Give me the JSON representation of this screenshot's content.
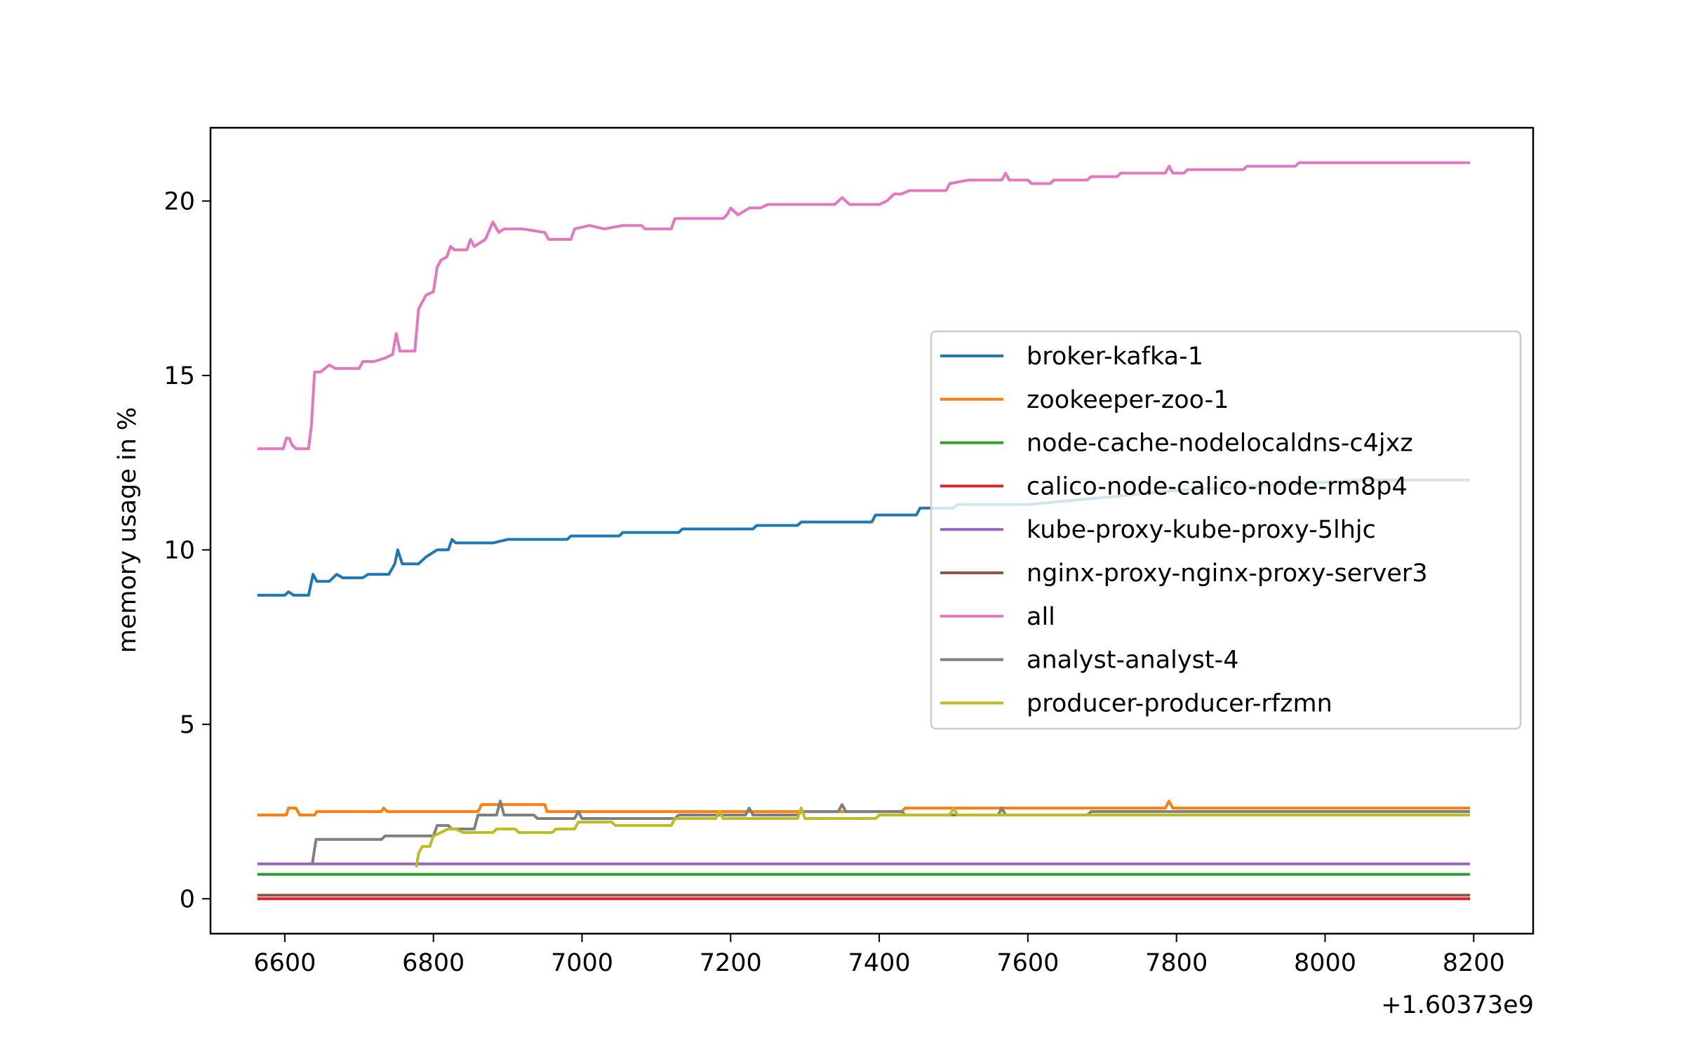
{
  "chart_data": {
    "type": "line",
    "title": "",
    "xlabel": "",
    "ylabel": "memory usage in %",
    "x_offset_label": "+1.60373e9",
    "xlim": [
      6500,
      8280
    ],
    "ylim": [
      -1.0,
      22.1
    ],
    "xticks": [
      6600,
      6800,
      7000,
      7200,
      7400,
      7600,
      7800,
      8000,
      8200
    ],
    "yticks": [
      0,
      5,
      10,
      15,
      20
    ],
    "grid": false,
    "legend_position": "center-right",
    "series": [
      {
        "name": "broker-kafka-1",
        "color": "#1f77b4",
        "points": [
          [
            6563,
            8.7
          ],
          [
            6600,
            8.7
          ],
          [
            6605,
            8.8
          ],
          [
            6612,
            8.7
          ],
          [
            6632,
            8.7
          ],
          [
            6638,
            9.3
          ],
          [
            6643,
            9.1
          ],
          [
            6660,
            9.1
          ],
          [
            6670,
            9.3
          ],
          [
            6678,
            9.2
          ],
          [
            6705,
            9.2
          ],
          [
            6712,
            9.3
          ],
          [
            6740,
            9.3
          ],
          [
            6748,
            9.6
          ],
          [
            6752,
            10.0
          ],
          [
            6758,
            9.6
          ],
          [
            6780,
            9.6
          ],
          [
            6790,
            9.8
          ],
          [
            6805,
            10.0
          ],
          [
            6820,
            10.0
          ],
          [
            6825,
            10.3
          ],
          [
            6830,
            10.2
          ],
          [
            6880,
            10.2
          ],
          [
            6900,
            10.3
          ],
          [
            6980,
            10.3
          ],
          [
            6985,
            10.4
          ],
          [
            7050,
            10.4
          ],
          [
            7055,
            10.5
          ],
          [
            7130,
            10.5
          ],
          [
            7135,
            10.6
          ],
          [
            7230,
            10.6
          ],
          [
            7235,
            10.7
          ],
          [
            7290,
            10.7
          ],
          [
            7295,
            10.8
          ],
          [
            7390,
            10.8
          ],
          [
            7395,
            11.0
          ],
          [
            7450,
            11.0
          ],
          [
            7455,
            11.2
          ],
          [
            7500,
            11.2
          ],
          [
            7505,
            11.3
          ],
          [
            7600,
            11.3
          ],
          [
            7650,
            11.4
          ],
          [
            7700,
            11.5
          ],
          [
            7750,
            11.6
          ],
          [
            7800,
            11.7
          ],
          [
            7880,
            11.8
          ],
          [
            7960,
            11.9
          ],
          [
            8060,
            12.0
          ],
          [
            8195,
            12.0
          ]
        ]
      },
      {
        "name": "zookeeper-zoo-1",
        "color": "#ff7f0e",
        "points": [
          [
            6563,
            2.4
          ],
          [
            6602,
            2.4
          ],
          [
            6605,
            2.6
          ],
          [
            6615,
            2.6
          ],
          [
            6620,
            2.4
          ],
          [
            6640,
            2.4
          ],
          [
            6643,
            2.5
          ],
          [
            6730,
            2.5
          ],
          [
            6733,
            2.6
          ],
          [
            6738,
            2.5
          ],
          [
            6860,
            2.5
          ],
          [
            6865,
            2.7
          ],
          [
            6950,
            2.7
          ],
          [
            6953,
            2.5
          ],
          [
            7430,
            2.5
          ],
          [
            7435,
            2.6
          ],
          [
            7785,
            2.6
          ],
          [
            7790,
            2.8
          ],
          [
            7795,
            2.6
          ],
          [
            8195,
            2.6
          ]
        ]
      },
      {
        "name": "node-cache-nodelocaldns-c4jxz",
        "color": "#2ca02c",
        "points": [
          [
            6563,
            0.7
          ],
          [
            8195,
            0.7
          ]
        ]
      },
      {
        "name": "calico-node-calico-node-rm8p4",
        "color": "#d62728",
        "points": [
          [
            6563,
            0.0
          ],
          [
            8195,
            0.0
          ]
        ]
      },
      {
        "name": "kube-proxy-kube-proxy-5lhjc",
        "color": "#9467bd",
        "points": [
          [
            6563,
            1.0
          ],
          [
            8195,
            1.0
          ]
        ]
      },
      {
        "name": "nginx-proxy-nginx-proxy-server3",
        "color": "#8c564b",
        "points": [
          [
            6563,
            0.1
          ],
          [
            8195,
            0.1
          ]
        ]
      },
      {
        "name": "all",
        "color": "#e377c2",
        "points": [
          [
            6563,
            12.9
          ],
          [
            6598,
            12.9
          ],
          [
            6602,
            13.2
          ],
          [
            6606,
            13.2
          ],
          [
            6610,
            13.0
          ],
          [
            6615,
            12.9
          ],
          [
            6632,
            12.9
          ],
          [
            6636,
            13.6
          ],
          [
            6640,
            15.1
          ],
          [
            6648,
            15.1
          ],
          [
            6660,
            15.3
          ],
          [
            6668,
            15.2
          ],
          [
            6700,
            15.2
          ],
          [
            6705,
            15.4
          ],
          [
            6720,
            15.4
          ],
          [
            6735,
            15.5
          ],
          [
            6745,
            15.6
          ],
          [
            6750,
            16.2
          ],
          [
            6755,
            15.7
          ],
          [
            6775,
            15.7
          ],
          [
            6780,
            16.9
          ],
          [
            6790,
            17.3
          ],
          [
            6800,
            17.4
          ],
          [
            6805,
            18.1
          ],
          [
            6810,
            18.3
          ],
          [
            6818,
            18.4
          ],
          [
            6823,
            18.7
          ],
          [
            6828,
            18.6
          ],
          [
            6845,
            18.6
          ],
          [
            6850,
            18.9
          ],
          [
            6855,
            18.7
          ],
          [
            6870,
            18.9
          ],
          [
            6880,
            19.4
          ],
          [
            6888,
            19.1
          ],
          [
            6895,
            19.2
          ],
          [
            6920,
            19.2
          ],
          [
            6950,
            19.1
          ],
          [
            6955,
            18.9
          ],
          [
            6985,
            18.9
          ],
          [
            6990,
            19.2
          ],
          [
            7010,
            19.3
          ],
          [
            7030,
            19.2
          ],
          [
            7055,
            19.3
          ],
          [
            7080,
            19.3
          ],
          [
            7085,
            19.2
          ],
          [
            7120,
            19.2
          ],
          [
            7125,
            19.5
          ],
          [
            7190,
            19.5
          ],
          [
            7195,
            19.6
          ],
          [
            7200,
            19.8
          ],
          [
            7210,
            19.6
          ],
          [
            7225,
            19.8
          ],
          [
            7240,
            19.8
          ],
          [
            7250,
            19.9
          ],
          [
            7300,
            19.9
          ],
          [
            7340,
            19.9
          ],
          [
            7350,
            20.1
          ],
          [
            7360,
            19.9
          ],
          [
            7400,
            19.9
          ],
          [
            7410,
            20.0
          ],
          [
            7420,
            20.2
          ],
          [
            7430,
            20.2
          ],
          [
            7440,
            20.3
          ],
          [
            7490,
            20.3
          ],
          [
            7495,
            20.5
          ],
          [
            7520,
            20.6
          ],
          [
            7565,
            20.6
          ],
          [
            7570,
            20.8
          ],
          [
            7575,
            20.6
          ],
          [
            7600,
            20.6
          ],
          [
            7605,
            20.5
          ],
          [
            7630,
            20.5
          ],
          [
            7635,
            20.6
          ],
          [
            7680,
            20.6
          ],
          [
            7685,
            20.7
          ],
          [
            7720,
            20.7
          ],
          [
            7725,
            20.8
          ],
          [
            7785,
            20.8
          ],
          [
            7790,
            21.0
          ],
          [
            7795,
            20.8
          ],
          [
            7810,
            20.8
          ],
          [
            7815,
            20.9
          ],
          [
            7890,
            20.9
          ],
          [
            7895,
            21.0
          ],
          [
            7960,
            21.0
          ],
          [
            7965,
            21.1
          ],
          [
            8195,
            21.1
          ]
        ]
      },
      {
        "name": "analyst-analyst-4",
        "color": "#7f7f7f",
        "points": [
          [
            6637,
            1.0
          ],
          [
            6642,
            1.7
          ],
          [
            6730,
            1.7
          ],
          [
            6735,
            1.8
          ],
          [
            6800,
            1.8
          ],
          [
            6805,
            2.1
          ],
          [
            6820,
            2.1
          ],
          [
            6825,
            2.0
          ],
          [
            6855,
            2.0
          ],
          [
            6860,
            2.4
          ],
          [
            6885,
            2.4
          ],
          [
            6890,
            2.8
          ],
          [
            6895,
            2.4
          ],
          [
            6935,
            2.4
          ],
          [
            6940,
            2.3
          ],
          [
            6990,
            2.3
          ],
          [
            6995,
            2.5
          ],
          [
            7000,
            2.3
          ],
          [
            7125,
            2.3
          ],
          [
            7130,
            2.4
          ],
          [
            7220,
            2.4
          ],
          [
            7225,
            2.6
          ],
          [
            7230,
            2.4
          ],
          [
            7290,
            2.4
          ],
          [
            7295,
            2.5
          ],
          [
            7345,
            2.5
          ],
          [
            7350,
            2.7
          ],
          [
            7355,
            2.5
          ],
          [
            7430,
            2.5
          ],
          [
            7435,
            2.4
          ],
          [
            7560,
            2.4
          ],
          [
            7565,
            2.6
          ],
          [
            7570,
            2.4
          ],
          [
            7680,
            2.4
          ],
          [
            7685,
            2.5
          ],
          [
            8195,
            2.5
          ]
        ]
      },
      {
        "name": "producer-producer-rfzmn",
        "color": "#bcbd22",
        "points": [
          [
            6777,
            0.9
          ],
          [
            6780,
            1.3
          ],
          [
            6785,
            1.5
          ],
          [
            6795,
            1.5
          ],
          [
            6800,
            1.8
          ],
          [
            6810,
            1.9
          ],
          [
            6820,
            2.0
          ],
          [
            6830,
            2.0
          ],
          [
            6840,
            1.9
          ],
          [
            6880,
            1.9
          ],
          [
            6885,
            2.0
          ],
          [
            6910,
            2.0
          ],
          [
            6915,
            1.9
          ],
          [
            6960,
            1.9
          ],
          [
            6965,
            2.0
          ],
          [
            6990,
            2.0
          ],
          [
            6995,
            2.2
          ],
          [
            7040,
            2.2
          ],
          [
            7045,
            2.1
          ],
          [
            7120,
            2.1
          ],
          [
            7125,
            2.3
          ],
          [
            7180,
            2.3
          ],
          [
            7185,
            2.5
          ],
          [
            7190,
            2.3
          ],
          [
            7290,
            2.3
          ],
          [
            7295,
            2.6
          ],
          [
            7300,
            2.3
          ],
          [
            7395,
            2.3
          ],
          [
            7400,
            2.4
          ],
          [
            7495,
            2.4
          ],
          [
            7500,
            2.6
          ],
          [
            7505,
            2.4
          ],
          [
            8195,
            2.4
          ]
        ]
      }
    ]
  }
}
